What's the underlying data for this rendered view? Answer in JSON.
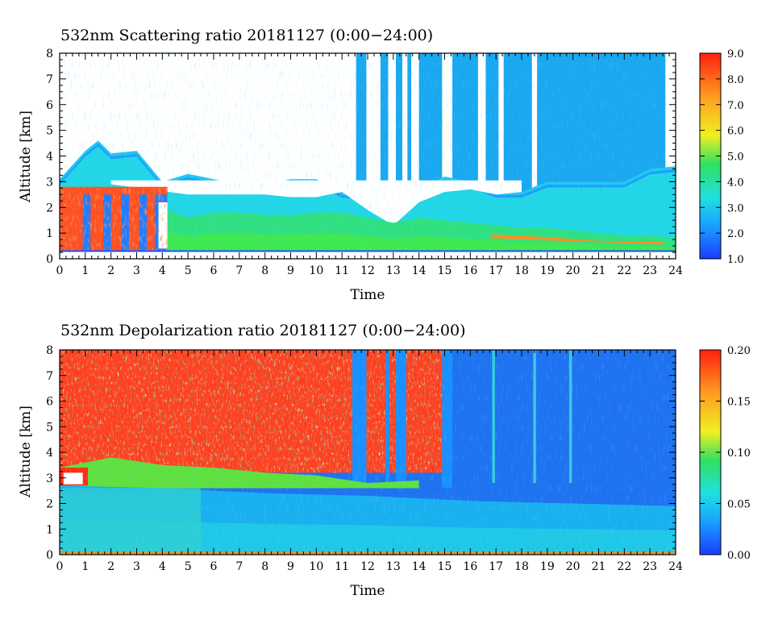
{
  "charts": [
    {
      "title": "532nm Scattering ratio   20181127 (0:00−24:00)",
      "xlabel": "Time",
      "ylabel": "Altitude [km]",
      "x_ticks": [
        "0",
        "1",
        "2",
        "3",
        "4",
        "5",
        "6",
        "7",
        "8",
        "9",
        "10",
        "11",
        "12",
        "13",
        "14",
        "15",
        "16",
        "17",
        "18",
        "19",
        "20",
        "21",
        "22",
        "23",
        "24"
      ],
      "y_ticks": [
        "0",
        "1",
        "2",
        "3",
        "4",
        "5",
        "6",
        "7",
        "8"
      ],
      "colorbar_ticks": [
        "1.0",
        "2.0",
        "3.0",
        "4.0",
        "5.0",
        "6.0",
        "7.0",
        "8.0",
        "9.0"
      ]
    },
    {
      "title": "532nm Depolarization ratio   20181127 (0:00−24:00)",
      "xlabel": "Time",
      "ylabel": "Altitude [km]",
      "x_ticks": [
        "0",
        "1",
        "2",
        "3",
        "4",
        "5",
        "6",
        "7",
        "8",
        "9",
        "10",
        "11",
        "12",
        "13",
        "14",
        "15",
        "16",
        "17",
        "18",
        "19",
        "20",
        "21",
        "22",
        "23",
        "24"
      ],
      "y_ticks": [
        "0",
        "1",
        "2",
        "3",
        "4",
        "5",
        "6",
        "7",
        "8"
      ],
      "colorbar_ticks": [
        "0.00",
        "0.05",
        "0.10",
        "0.15",
        "0.20"
      ]
    }
  ],
  "chart_data": [
    {
      "type": "heatmap",
      "title": "532nm Scattering ratio   20181127 (0:00−24:00)",
      "xlabel": "Time",
      "ylabel": "Altitude [km]",
      "xlim": [
        0,
        24
      ],
      "ylim": [
        0,
        8
      ],
      "x_ticks": [
        0,
        1,
        2,
        3,
        4,
        5,
        6,
        7,
        8,
        9,
        10,
        11,
        12,
        13,
        14,
        15,
        16,
        17,
        18,
        19,
        20,
        21,
        22,
        23,
        24
      ],
      "y_ticks": [
        0,
        1,
        2,
        3,
        4,
        5,
        6,
        7,
        8
      ],
      "colorbar": {
        "min": 1.0,
        "max": 9.0,
        "ticks": [
          1.0,
          2.0,
          3.0,
          4.0,
          5.0,
          6.0,
          7.0,
          8.0,
          9.0
        ],
        "colors": [
          "#1a3cff",
          "#1aa0ff",
          "#20e0e0",
          "#30e060",
          "#f0f020",
          "#ffa020",
          "#ff2010"
        ]
      },
      "cloud_top_km": [
        [
          0,
          3.1
        ],
        [
          1,
          4.2
        ],
        [
          1.5,
          4.6
        ],
        [
          2,
          4.1
        ],
        [
          3,
          4.2
        ],
        [
          4,
          3.0
        ],
        [
          5,
          3.3
        ],
        [
          6,
          3.1
        ],
        [
          7,
          2.9
        ],
        [
          8,
          2.9
        ],
        [
          9,
          3.1
        ],
        [
          10,
          3.1
        ],
        [
          11,
          2.6
        ],
        [
          12,
          2.5
        ],
        [
          13,
          2.4
        ],
        [
          14,
          2.7
        ],
        [
          15,
          3.2
        ],
        [
          16,
          3.0
        ],
        [
          17,
          2.6
        ],
        [
          18,
          2.6
        ],
        [
          19,
          3.0
        ],
        [
          20,
          3.0
        ],
        [
          21,
          3.0
        ],
        [
          22,
          3.0
        ],
        [
          23,
          3.5
        ],
        [
          24,
          3.6
        ]
      ],
      "clear_gap_base_km": [
        [
          2,
          2.9
        ],
        [
          5,
          2.5
        ],
        [
          8,
          2.5
        ],
        [
          9,
          2.4
        ],
        [
          10,
          2.4
        ],
        [
          11,
          2.6
        ],
        [
          12,
          1.9
        ],
        [
          13,
          1.3
        ],
        [
          14,
          2.2
        ],
        [
          15,
          2.6
        ],
        [
          16,
          2.7
        ],
        [
          17,
          2.5
        ],
        [
          18,
          2.6
        ]
      ],
      "boundary_layer_top_km": [
        [
          0,
          2.8
        ],
        [
          1,
          2.8
        ],
        [
          2,
          2.8
        ],
        [
          3,
          2.8
        ],
        [
          4,
          2.0
        ],
        [
          5,
          1.6
        ],
        [
          6,
          1.8
        ],
        [
          7,
          1.8
        ],
        [
          8,
          1.7
        ],
        [
          9,
          1.7
        ],
        [
          10,
          1.8
        ],
        [
          11,
          1.8
        ],
        [
          12,
          1.6
        ],
        [
          13,
          1.4
        ],
        [
          14,
          1.6
        ],
        [
          15,
          1.5
        ],
        [
          16,
          1.4
        ],
        [
          17,
          1.3
        ],
        [
          18,
          1.2
        ],
        [
          19,
          1.2
        ],
        [
          20,
          1.1
        ],
        [
          21,
          1.0
        ],
        [
          22,
          0.9
        ],
        [
          23,
          0.9
        ],
        [
          24,
          0.8
        ]
      ]
    },
    {
      "type": "heatmap",
      "title": "532nm Depolarization ratio   20181127 (0:00−24:00)",
      "xlabel": "Time",
      "ylabel": "Altitude [km]",
      "xlim": [
        0,
        24
      ],
      "ylim": [
        0,
        8
      ],
      "x_ticks": [
        0,
        1,
        2,
        3,
        4,
        5,
        6,
        7,
        8,
        9,
        10,
        11,
        12,
        13,
        14,
        15,
        16,
        17,
        18,
        19,
        20,
        21,
        22,
        23,
        24
      ],
      "y_ticks": [
        0,
        1,
        2,
        3,
        4,
        5,
        6,
        7,
        8
      ],
      "colorbar": {
        "min": 0.0,
        "max": 0.2,
        "ticks": [
          0.0,
          0.05,
          0.1,
          0.15,
          0.2
        ],
        "colors": [
          "#1a3cff",
          "#1aa0ff",
          "#20e0e0",
          "#30e060",
          "#f0f020",
          "#ffa020",
          "#ff2010"
        ]
      },
      "noisy_upper_region_until_hour": 15,
      "cloud_layer_top_km": [
        [
          0,
          3.4
        ],
        [
          2,
          3.8
        ],
        [
          4,
          3.5
        ],
        [
          6,
          3.4
        ],
        [
          8,
          3.2
        ],
        [
          10,
          3.1
        ],
        [
          12,
          2.8
        ],
        [
          14,
          2.9
        ]
      ],
      "aerosol_layer_top_km": [
        [
          0,
          2.7
        ],
        [
          4,
          2.6
        ],
        [
          8,
          2.4
        ],
        [
          12,
          2.3
        ],
        [
          16,
          2.1
        ],
        [
          20,
          2.0
        ],
        [
          24,
          1.9
        ]
      ]
    }
  ]
}
